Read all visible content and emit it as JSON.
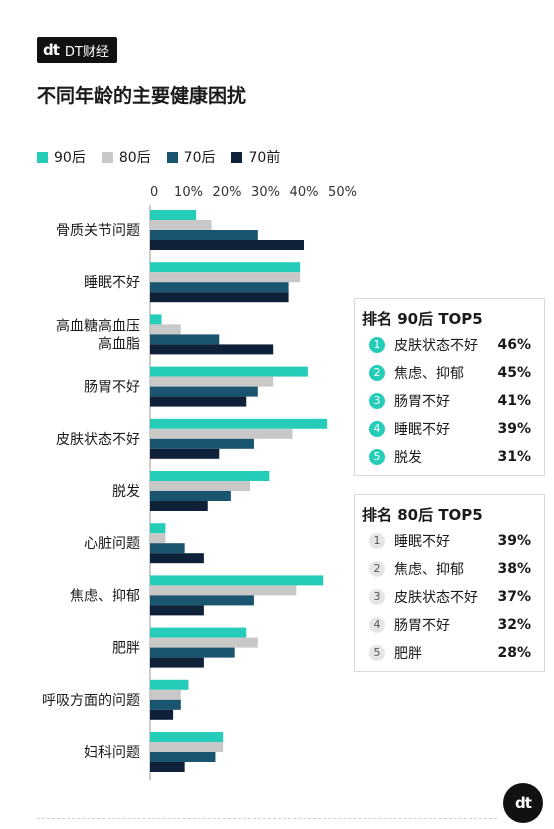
{
  "brand": {
    "mark": "dt",
    "name": "DT财经"
  },
  "title": "不同年龄的主要健康困扰",
  "colors": {
    "s90": "#25cdb8",
    "s80": "#c8c8c8",
    "s70": "#1a5570",
    "s70q": "#0f2138"
  },
  "chart_data": {
    "type": "bar",
    "orientation": "horizontal",
    "categories": [
      "骨质关节问题",
      "睡眠不好",
      "高血糖高血压\n高血脂",
      "肠胃不好",
      "皮肤状态不好",
      "脱发",
      "心脏问题",
      "焦虑、抑郁",
      "肥胖",
      "呼吸方面的问题",
      "妇科问题"
    ],
    "series": [
      {
        "name": "90后",
        "values": [
          12,
          39,
          3,
          41,
          46,
          31,
          4,
          45,
          25,
          10,
          19
        ]
      },
      {
        "name": "80后",
        "values": [
          16,
          39,
          8,
          32,
          37,
          26,
          4,
          38,
          28,
          8,
          19
        ]
      },
      {
        "name": "70后",
        "values": [
          28,
          36,
          18,
          28,
          27,
          21,
          9,
          27,
          22,
          8,
          17
        ]
      },
      {
        "name": "70前",
        "values": [
          40,
          36,
          32,
          25,
          18,
          15,
          14,
          14,
          14,
          6,
          9
        ]
      }
    ],
    "xticks": [
      "0",
      "10%",
      "20%",
      "30%",
      "40%",
      "50%"
    ],
    "xlim": [
      0,
      50
    ],
    "legend": "top-left",
    "grid": false
  },
  "rank90": {
    "title": "排名 90后 TOP5",
    "items": [
      {
        "n": "1",
        "label": "皮肤状态不好",
        "pct": "46%"
      },
      {
        "n": "2",
        "label": "焦虑、抑郁",
        "pct": "45%"
      },
      {
        "n": "3",
        "label": "肠胃不好",
        "pct": "41%"
      },
      {
        "n": "4",
        "label": "睡眠不好",
        "pct": "39%"
      },
      {
        "n": "5",
        "label": "脱发",
        "pct": "31%"
      }
    ]
  },
  "rank80": {
    "title": "排名 80后 TOP5",
    "items": [
      {
        "n": "1",
        "label": "睡眠不好",
        "pct": "39%"
      },
      {
        "n": "2",
        "label": "焦虑、抑郁",
        "pct": "38%"
      },
      {
        "n": "3",
        "label": "皮肤状态不好",
        "pct": "37%"
      },
      {
        "n": "4",
        "label": "肠胃不好",
        "pct": "32%"
      },
      {
        "n": "5",
        "label": "肥胖",
        "pct": "28%"
      }
    ]
  }
}
